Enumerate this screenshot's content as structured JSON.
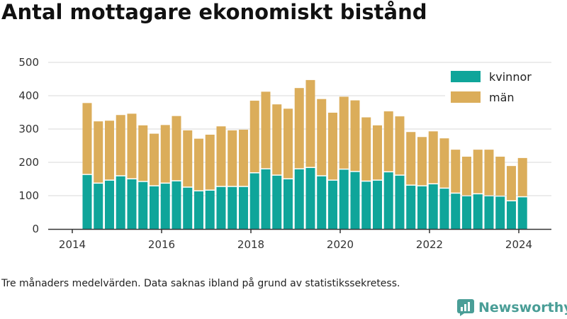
{
  "title": "Antal mottagare ekonomiskt bistånd",
  "footnote": "Tre månaders medelvärden. Data saknas ibland på grund av statistikssekretess.",
  "brand": {
    "name": "Newsworthy",
    "color": "#4a9e97"
  },
  "colors": {
    "kvinnor": "#0fa59a",
    "man": "#dbad5a",
    "grid": "#d9d9d9",
    "axis": "#333333"
  },
  "chart_data": {
    "type": "bar",
    "stacked": true,
    "x_ticks": [
      "2014",
      "2016",
      "2018",
      "2020",
      "2022",
      "2024"
    ],
    "y_ticks": [
      "0",
      "100",
      "200",
      "300",
      "400",
      "500"
    ],
    "ylim": [
      0,
      500
    ],
    "x_domain_years": [
      2014,
      2024.5
    ],
    "legend_position": "top-right",
    "grid": true,
    "periods": [
      2014.333,
      2014.583,
      2014.833,
      2015.083,
      2015.333,
      2015.583,
      2015.833,
      2016.083,
      2016.333,
      2016.583,
      2016.833,
      2017.083,
      2017.333,
      2017.583,
      2017.833,
      2018.083,
      2018.333,
      2018.583,
      2018.833,
      2019.083,
      2019.333,
      2019.583,
      2019.833,
      2020.083,
      2020.333,
      2020.583,
      2020.833,
      2021.083,
      2021.333,
      2021.583,
      2021.833,
      2022.083,
      2022.333,
      2022.583,
      2022.833,
      2023.083,
      2023.333,
      2023.583,
      2023.833,
      2024.083
    ],
    "series": [
      {
        "name": "kvinnor",
        "values": [
          162,
          136,
          145,
          158,
          149,
          141,
          128,
          136,
          143,
          124,
          113,
          115,
          126,
          126,
          126,
          167,
          179,
          160,
          149,
          179,
          183,
          158,
          145,
          178,
          171,
          142,
          145,
          170,
          160,
          130,
          128,
          134,
          121,
          106,
          98,
          104,
          98,
          97,
          83,
          95
        ]
      },
      {
        "name": "män",
        "values": [
          216,
          187,
          180,
          184,
          197,
          170,
          158,
          176,
          196,
          172,
          158,
          168,
          182,
          170,
          172,
          218,
          233,
          214,
          212,
          244,
          264,
          232,
          204,
          219,
          215,
          193,
          166,
          183,
          178,
          161,
          148,
          159,
          151,
          132,
          119,
          134,
          140,
          120,
          106,
          118
        ]
      }
    ]
  }
}
